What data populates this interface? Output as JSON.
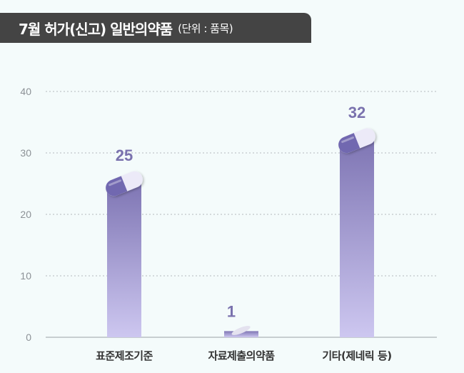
{
  "title": {
    "main": "7월 허가(신고) 일반의약품",
    "unit": "(단위 : 품목)"
  },
  "colors": {
    "bar_top": "#7f76b4",
    "bar_bottom": "#cdc7f0",
    "value_label": "#7a72ae",
    "grid": "#b3b8bd",
    "axis_text": "#8c9196",
    "category_text": "#333333",
    "title_bg": "#444444",
    "capsule_dark": "#7168b0",
    "capsule_light": "#eceaf8"
  },
  "chart_data": {
    "type": "bar",
    "categories": [
      "표준제조기준",
      "자료제출의약품",
      "기타(제네릭 등)"
    ],
    "values": [
      25,
      1,
      32
    ],
    "ylim": [
      0,
      40
    ],
    "yticks": [
      0,
      10,
      20,
      30,
      40
    ],
    "grid": true,
    "data_labels": true
  }
}
